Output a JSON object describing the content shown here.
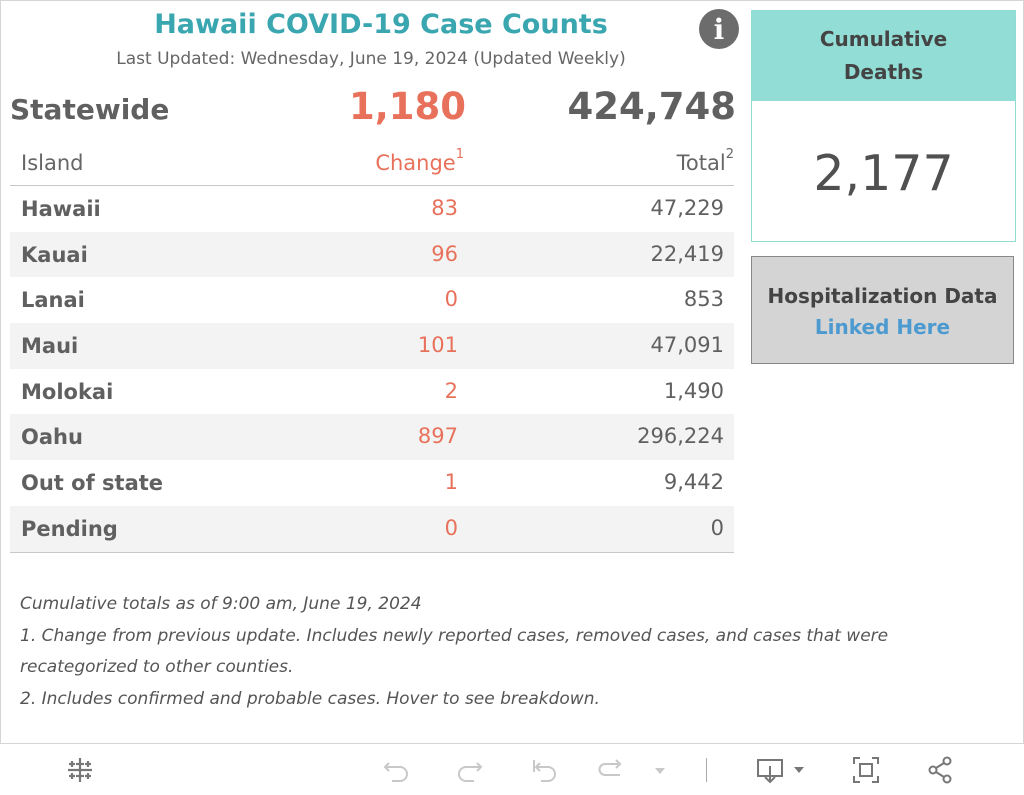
{
  "header": {
    "title": "Hawaii COVID-19 Case Counts",
    "subtitle": "Last Updated: Wednesday, June 19, 2024 (Updated Weekly)",
    "info_icon": "info-icon"
  },
  "statewide": {
    "label": "Statewide",
    "change": "1,180",
    "total": "424,748"
  },
  "table": {
    "columns": {
      "island": "Island",
      "change": "Change",
      "change_sup": "1",
      "total": "Total",
      "total_sup": "2"
    },
    "rows": [
      {
        "island": "Hawaii",
        "change": "83",
        "total": "47,229"
      },
      {
        "island": "Kauai",
        "change": "96",
        "total": "22,419"
      },
      {
        "island": "Lanai",
        "change": "0",
        "total": "853"
      },
      {
        "island": "Maui",
        "change": "101",
        "total": "47,091"
      },
      {
        "island": "Molokai",
        "change": "2",
        "total": "1,490"
      },
      {
        "island": "Oahu",
        "change": "897",
        "total": "296,224"
      },
      {
        "island": "Out of state",
        "change": "1",
        "total": "9,442"
      },
      {
        "island": "Pending",
        "change": "0",
        "total": "0"
      }
    ]
  },
  "deaths": {
    "label_line1": "Cumulative",
    "label_line2": "Deaths",
    "value": "2,177"
  },
  "hospitalization": {
    "title": "Hospitalization Data",
    "link": "Linked Here"
  },
  "notes": {
    "line1": "Cumulative totals as of 9:00 am, June 19, 2024",
    "line2": "1. Change from previous update. Includes newly reported cases, removed cases, and cases that were",
    "line3": "recategorized to other counties.",
    "line4": "2. Includes confirmed and probable cases. Hover to see breakdown."
  },
  "colors": {
    "title": "#3aa6b0",
    "change": "#e8715b",
    "deaths_header": "#92ddd5",
    "hosp_background": "#d4d4d4",
    "link": "#4c9ad0"
  },
  "toolbar": {
    "icons": [
      "tableau-logo-icon",
      "undo-icon",
      "redo-icon",
      "revert-icon",
      "refresh-icon",
      "pause-dropdown-icon",
      "download-icon",
      "fullscreen-icon",
      "share-icon"
    ]
  }
}
